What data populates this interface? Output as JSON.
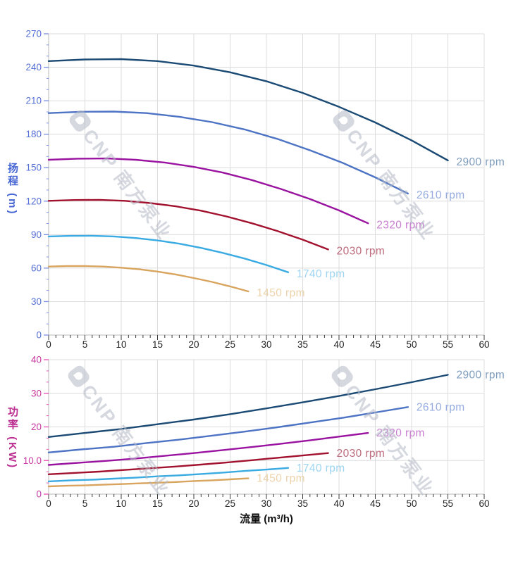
{
  "watermark": {
    "text": "CNP 南方泵业"
  },
  "chart_data": [
    {
      "type": "line",
      "id": "head-curve-chart",
      "title": "",
      "xlabel": "",
      "ylabel": "扬程 (m)",
      "xlim": [
        0,
        60
      ],
      "ylim": [
        0,
        270
      ],
      "x_tick_step": 5,
      "x_minor_step": 1,
      "y_tick_step": 30,
      "y_minor_step": 10,
      "grid": true,
      "legend": "line-end-labels",
      "axis_colors": {
        "tick": "#7d8fe0",
        "label": "#5570d6",
        "title": "#4565d4"
      },
      "x_tick_labels": [
        "0",
        "5",
        "10",
        "15",
        "20",
        "25",
        "30",
        "35",
        "40",
        "45",
        "50",
        "55",
        "60"
      ],
      "y_tick_labels": [
        "0",
        "30",
        "60",
        "90",
        "120",
        "150",
        "180",
        "210",
        "240",
        "270"
      ],
      "series": [
        {
          "name": "2900 rpm",
          "color": "#1b4a74",
          "label_color": "#7f9dbd",
          "points": [
            [
              0,
              245.5
            ],
            [
              5,
              247
            ],
            [
              10,
              247.3
            ],
            [
              15,
              245.5
            ],
            [
              20,
              241.5
            ],
            [
              25,
              235.5
            ],
            [
              30,
              227.5
            ],
            [
              35,
              217
            ],
            [
              40,
              204.5
            ],
            [
              45,
              190.5
            ],
            [
              50,
              174.5
            ],
            [
              55,
              156.5
            ]
          ]
        },
        {
          "name": "2610 rpm",
          "color": "#4d73c4",
          "label_color": "#95abdf",
          "points": [
            [
              0,
              198.9
            ],
            [
              4.5,
              200.1
            ],
            [
              9,
              200.3
            ],
            [
              13.5,
              198.9
            ],
            [
              18,
              195.6
            ],
            [
              22.5,
              190.8
            ],
            [
              27,
              184.3
            ],
            [
              31.5,
              175.8
            ],
            [
              36,
              165.6
            ],
            [
              40.5,
              154.3
            ],
            [
              45,
              141.3
            ],
            [
              49.5,
              126.8
            ]
          ]
        },
        {
          "name": "2320 rpm",
          "color": "#9a12a0",
          "label_color": "#c97fd1",
          "points": [
            [
              0,
              157.1
            ],
            [
              4,
              158.1
            ],
            [
              8,
              158.3
            ],
            [
              12,
              157.1
            ],
            [
              16,
              154.6
            ],
            [
              20,
              150.7
            ],
            [
              24,
              145.6
            ],
            [
              28,
              138.9
            ],
            [
              32,
              130.9
            ],
            [
              36,
              121.9
            ],
            [
              40,
              111.7
            ],
            [
              44,
              100.2
            ]
          ]
        },
        {
          "name": "2030 rpm",
          "color": "#a2122f",
          "label_color": "#bc6c7d",
          "points": [
            [
              0,
              120.3
            ],
            [
              3.5,
              121
            ],
            [
              7,
              121.2
            ],
            [
              10.5,
              120.3
            ],
            [
              14,
              118.3
            ],
            [
              17.5,
              115.4
            ],
            [
              21,
              111.5
            ],
            [
              24.5,
              106.3
            ],
            [
              28,
              100.2
            ],
            [
              31.5,
              93.3
            ],
            [
              35,
              85.5
            ],
            [
              38.5,
              76.7
            ]
          ]
        },
        {
          "name": "1740 rpm",
          "color": "#39abe2",
          "label_color": "#9fd4f2",
          "points": [
            [
              0,
              88.4
            ],
            [
              3,
              88.9
            ],
            [
              6,
              89
            ],
            [
              9,
              88.4
            ],
            [
              12,
              86.9
            ],
            [
              15,
              84.8
            ],
            [
              18,
              81.9
            ],
            [
              21,
              78.1
            ],
            [
              24,
              73.6
            ],
            [
              27,
              68.6
            ],
            [
              30,
              62.8
            ],
            [
              33,
              56.3
            ]
          ]
        },
        {
          "name": "1450 rpm",
          "color": "#d8a45e",
          "label_color": "#ecd3ab",
          "points": [
            [
              0,
              61.4
            ],
            [
              2.5,
              61.8
            ],
            [
              5,
              61.8
            ],
            [
              7.5,
              61.4
            ],
            [
              10,
              60.4
            ],
            [
              12.5,
              58.9
            ],
            [
              15,
              56.9
            ],
            [
              17.5,
              54.3
            ],
            [
              20,
              51.1
            ],
            [
              22.5,
              47.6
            ],
            [
              25,
              43.6
            ],
            [
              27.5,
              39.1
            ]
          ]
        }
      ]
    },
    {
      "type": "line",
      "id": "power-curve-chart",
      "title": "",
      "xlabel": "流量 (m³/h)",
      "ylabel": "功率 (KW)",
      "xlim": [
        0,
        60
      ],
      "ylim": [
        0,
        40
      ],
      "x_tick_step": 5,
      "x_minor_step": 1,
      "y_tick_step": 10,
      "y_minor_step": 3.3333,
      "grid": true,
      "legend": "line-end-labels",
      "axis_colors": {
        "tick": "#e84cb5",
        "label": "#c93aa2",
        "title": "#bb2d90"
      },
      "x_tick_labels": [
        "0",
        "5",
        "10",
        "15",
        "20",
        "25",
        "30",
        "35",
        "40",
        "45",
        "50",
        "55",
        "60"
      ],
      "y_tick_labels": [
        "0",
        "10.0",
        "20",
        "30",
        "40"
      ],
      "series": [
        {
          "name": "2900 rpm",
          "color": "#1b4a74",
          "label_color": "#7f9dbd",
          "points": [
            [
              0,
              17
            ],
            [
              5,
              18.2
            ],
            [
              10,
              19.4
            ],
            [
              15,
              20.8
            ],
            [
              20,
              22.2
            ],
            [
              25,
              23.8
            ],
            [
              30,
              25.5
            ],
            [
              35,
              27.3
            ],
            [
              40,
              29.2
            ],
            [
              45,
              31.2
            ],
            [
              50,
              33.3
            ],
            [
              55,
              35.5
            ]
          ]
        },
        {
          "name": "2610 rpm",
          "color": "#4d73c4",
          "label_color": "#95abdf",
          "points": [
            [
              0,
              12.4
            ],
            [
              4.5,
              13.3
            ],
            [
              9,
              14.1
            ],
            [
              13.5,
              15.2
            ],
            [
              18,
              16.2
            ],
            [
              22.5,
              17.4
            ],
            [
              27,
              18.6
            ],
            [
              31.5,
              19.9
            ],
            [
              36,
              21.3
            ],
            [
              40.5,
              22.7
            ],
            [
              45,
              24.3
            ],
            [
              49.5,
              25.9
            ]
          ]
        },
        {
          "name": "2320 rpm",
          "color": "#9a12a0",
          "label_color": "#c97fd1",
          "points": [
            [
              0,
              8.7
            ],
            [
              4,
              9.3
            ],
            [
              8,
              9.9
            ],
            [
              12,
              10.6
            ],
            [
              16,
              11.4
            ],
            [
              20,
              12.2
            ],
            [
              24,
              13.1
            ],
            [
              28,
              14
            ],
            [
              32,
              15
            ],
            [
              36,
              16
            ],
            [
              40,
              17.1
            ],
            [
              44,
              18.2
            ]
          ]
        },
        {
          "name": "2030 rpm",
          "color": "#a2122f",
          "label_color": "#bc6c7d",
          "points": [
            [
              0,
              5.9
            ],
            [
              3.5,
              6.3
            ],
            [
              7,
              6.7
            ],
            [
              10.5,
              7.2
            ],
            [
              14,
              7.7
            ],
            [
              17.5,
              8.2
            ],
            [
              21,
              8.8
            ],
            [
              24.5,
              9.4
            ],
            [
              28,
              10.1
            ],
            [
              31.5,
              10.8
            ],
            [
              35,
              11.5
            ],
            [
              38.5,
              12.2
            ]
          ]
        },
        {
          "name": "1740 rpm",
          "color": "#39abe2",
          "label_color": "#9fd4f2",
          "points": [
            [
              0,
              3.8
            ],
            [
              3,
              4.1
            ],
            [
              6,
              4.3
            ],
            [
              9,
              4.6
            ],
            [
              12,
              4.9
            ],
            [
              15,
              5.3
            ],
            [
              18,
              5.6
            ],
            [
              21,
              6
            ],
            [
              24,
              6.4
            ],
            [
              27,
              6.9
            ],
            [
              30,
              7.3
            ],
            [
              33,
              7.8
            ]
          ]
        },
        {
          "name": "1450 rpm",
          "color": "#d8a45e",
          "label_color": "#ecd3ab",
          "points": [
            [
              0,
              2.3
            ],
            [
              2.5,
              2.5
            ],
            [
              5,
              2.6
            ],
            [
              7.5,
              2.8
            ],
            [
              10,
              3
            ],
            [
              12.5,
              3.2
            ],
            [
              15,
              3.4
            ],
            [
              17.5,
              3.6
            ],
            [
              20,
              3.9
            ],
            [
              22.5,
              4.1
            ],
            [
              25,
              4.4
            ],
            [
              27.5,
              4.7
            ]
          ]
        }
      ]
    }
  ]
}
